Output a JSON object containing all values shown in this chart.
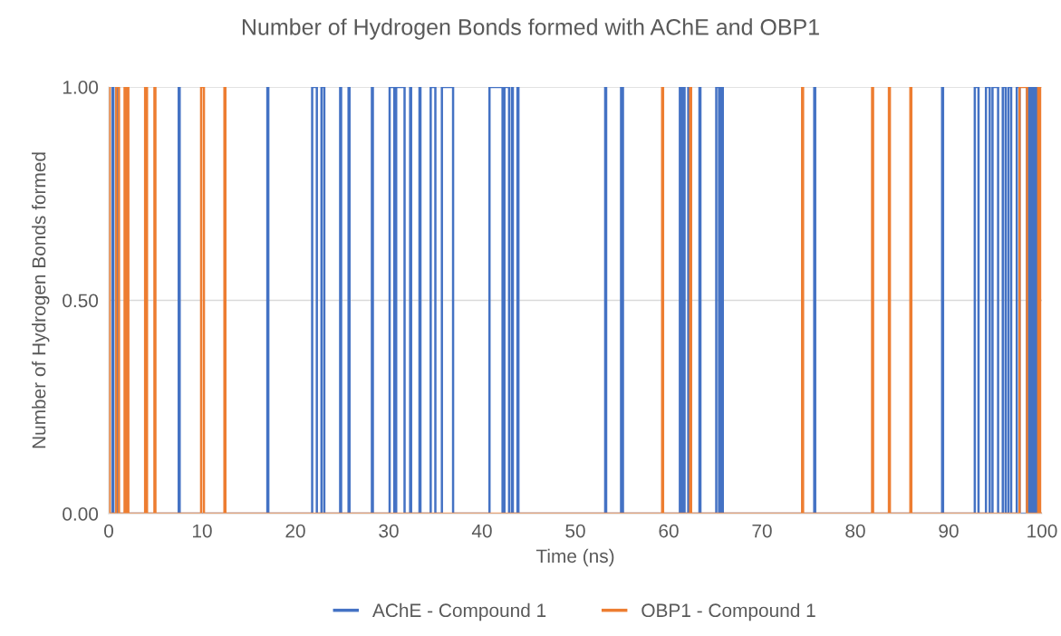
{
  "chart_data": {
    "type": "line",
    "title": "Number of Hydrogen Bonds formed with AChE and OBP1",
    "xlabel": "Time (ns)",
    "ylabel": "Number of Hydrogen Bonds formed",
    "xlim": [
      0,
      100
    ],
    "xticks": [
      0,
      10,
      20,
      30,
      40,
      50,
      60,
      70,
      80,
      90,
      100
    ],
    "ylim": [
      0,
      1
    ],
    "yticks": [
      {
        "value": 0,
        "label": "0.00"
      },
      {
        "value": 0.5,
        "label": "0.50"
      },
      {
        "value": 1,
        "label": "1.00"
      }
    ],
    "grid": "y",
    "legend": "bottom",
    "marker": "none",
    "line_style": "solid",
    "series": [
      {
        "name": "AChE - Compound 1",
        "color": "#4472c4",
        "x": [
          0,
          0.4,
          0.4,
          0.5,
          0.5,
          0.8,
          0.8,
          0.9,
          0.9,
          7.5,
          7.5,
          7.6,
          7.6,
          17.0,
          17.0,
          17.1,
          17.1,
          21.8,
          21.8,
          22.3,
          22.3,
          22.8,
          22.8,
          23.1,
          23.1,
          24.8,
          24.8,
          24.9,
          24.9,
          25.7,
          25.7,
          25.8,
          25.8,
          28.2,
          28.2,
          28.3,
          28.3,
          30.1,
          30.1,
          30.6,
          30.6,
          30.8,
          30.8,
          31.7,
          31.7,
          32.3,
          32.3,
          32.4,
          32.4,
          33.3,
          33.3,
          33.4,
          33.4,
          34.5,
          34.5,
          35.0,
          35.0,
          35.7,
          35.7,
          36.9,
          36.9,
          40.8,
          40.8,
          42.2,
          42.2,
          42.4,
          42.4,
          42.9,
          42.9,
          43.2,
          43.2,
          43.3,
          43.3,
          43.8,
          43.8,
          43.9,
          43.9,
          53.2,
          53.2,
          53.3,
          53.3,
          54.9,
          54.9,
          55.1,
          55.1,
          61.2,
          61.2,
          61.4,
          61.4,
          61.6,
          61.6,
          61.7,
          61.7,
          62.1,
          62.1,
          62.2,
          62.2,
          63.3,
          63.3,
          63.4,
          63.4,
          65.1,
          65.1,
          65.4,
          65.4,
          65.6,
          65.6,
          65.8,
          65.8,
          75.6,
          75.6,
          75.7,
          75.7,
          89.3,
          89.3,
          89.4,
          89.4,
          92.8,
          92.8,
          93.2,
          93.2,
          94.0,
          94.0,
          94.4,
          94.4,
          94.7,
          94.7,
          95.3,
          95.3,
          95.8,
          95.8,
          96.1,
          96.1,
          96.4,
          96.4,
          96.7,
          96.7,
          97.3,
          97.3,
          97.6,
          97.6,
          98.4,
          98.4,
          98.6,
          98.6,
          98.8,
          98.8,
          99.0,
          99.0,
          99.2,
          99.2,
          99.4,
          99.4,
          100
        ],
        "values": [
          0,
          0,
          1,
          1,
          0,
          0,
          1,
          1,
          0,
          0,
          1,
          1,
          0,
          0,
          1,
          1,
          0,
          0,
          1,
          1,
          0,
          0,
          1,
          1,
          0,
          0,
          1,
          1,
          0,
          0,
          1,
          1,
          0,
          0,
          1,
          1,
          0,
          0,
          1,
          1,
          0,
          0,
          1,
          1,
          0,
          0,
          1,
          1,
          0,
          0,
          1,
          1,
          0,
          0,
          1,
          1,
          0,
          0,
          1,
          1,
          0,
          0,
          1,
          1,
          0,
          0,
          1,
          1,
          0,
          0,
          1,
          1,
          0,
          0,
          1,
          1,
          0,
          0,
          1,
          1,
          0,
          0,
          1,
          1,
          0,
          0,
          1,
          1,
          0,
          0,
          1,
          1,
          0,
          0,
          1,
          1,
          0,
          0,
          1,
          1,
          0,
          0,
          1,
          1,
          0,
          0,
          1,
          1,
          0,
          0,
          1,
          1,
          0,
          0,
          1,
          1,
          0,
          0,
          1,
          1,
          0,
          0,
          1,
          1,
          0,
          0,
          1,
          1,
          0,
          0,
          1,
          1,
          0,
          0,
          1,
          1,
          0,
          0,
          1,
          1,
          0,
          0,
          1,
          1,
          0,
          0,
          1,
          1,
          0,
          0,
          1,
          1,
          0,
          0
        ]
      },
      {
        "name": "OBP1 - Compound 1",
        "color": "#ed7d31",
        "x": [
          0,
          0,
          0.1,
          0.1,
          0.8,
          0.8,
          1.1,
          1.1,
          1.7,
          1.7,
          1.8,
          1.8,
          2.0,
          2.0,
          2.1,
          2.1,
          3.9,
          3.9,
          4.1,
          4.1,
          4.9,
          4.9,
          5.0,
          5.0,
          9.9,
          9.9,
          10.2,
          10.2,
          12.4,
          12.4,
          12.5,
          12.5,
          59.3,
          59.3,
          59.4,
          59.4,
          62.3,
          62.3,
          62.4,
          62.4,
          74.3,
          74.3,
          74.4,
          74.4,
          81.8,
          81.8,
          81.9,
          81.9,
          83.6,
          83.6,
          83.7,
          83.7,
          85.9,
          85.9,
          86.0,
          86.0,
          97.6,
          97.6,
          98.4,
          98.4,
          99.6,
          99.6,
          99.8,
          99.8,
          100
        ],
        "values": [
          0,
          1,
          1,
          0,
          0,
          1,
          1,
          0,
          0,
          1,
          1,
          0,
          0,
          1,
          1,
          0,
          0,
          1,
          1,
          0,
          0,
          1,
          1,
          0,
          0,
          1,
          1,
          0,
          0,
          1,
          1,
          0,
          0,
          1,
          1,
          0,
          0,
          1,
          1,
          0,
          0,
          1,
          1,
          0,
          0,
          1,
          1,
          0,
          0,
          1,
          1,
          0,
          0,
          1,
          1,
          0,
          0,
          1,
          1,
          0,
          0,
          1,
          1,
          0,
          0
        ]
      }
    ]
  }
}
